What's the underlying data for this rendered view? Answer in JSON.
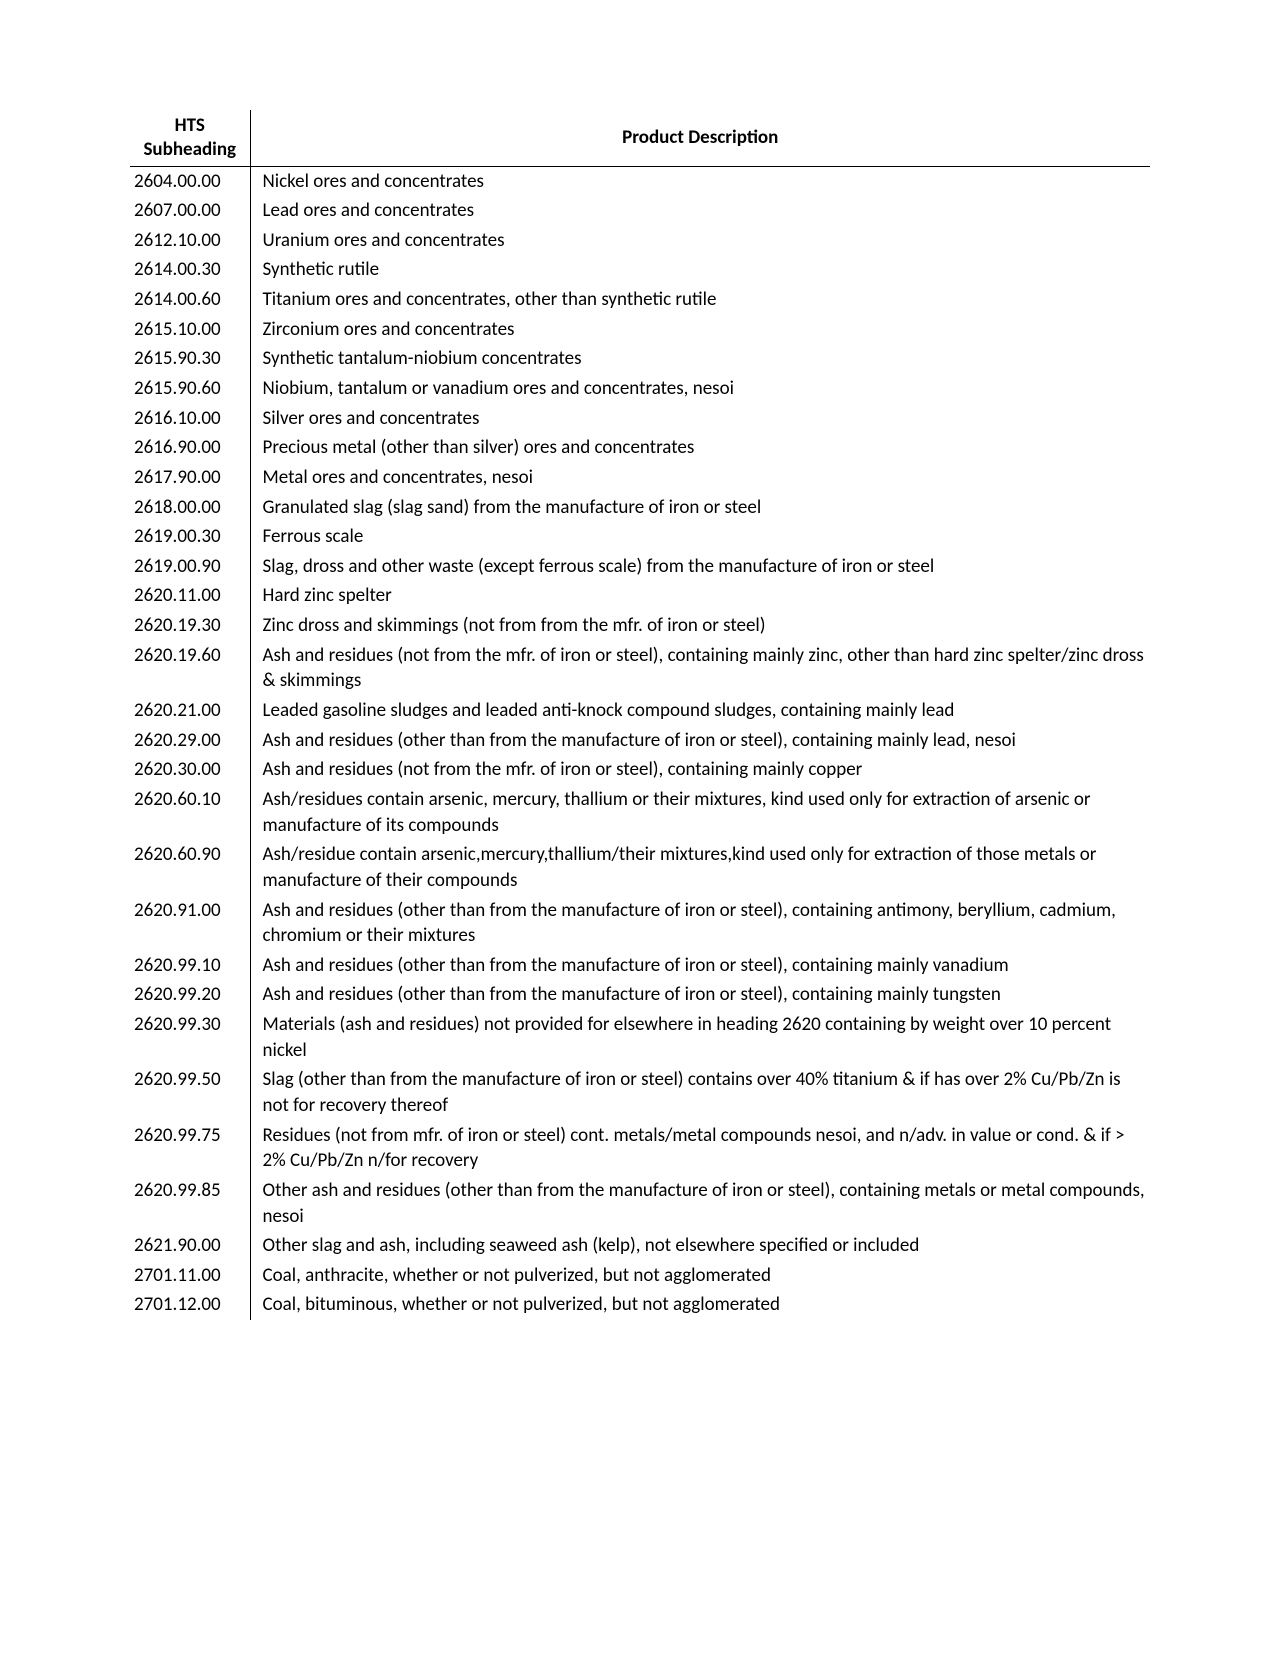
{
  "table": {
    "header": {
      "code_line1": "HTS",
      "code_line2": "Subheading",
      "desc": "Product Description"
    },
    "rows": [
      {
        "code": "2604.00.00",
        "desc": "Nickel ores and concentrates"
      },
      {
        "code": "2607.00.00",
        "desc": "Lead ores and concentrates"
      },
      {
        "code": "2612.10.00",
        "desc": "Uranium ores and concentrates"
      },
      {
        "code": "2614.00.30",
        "desc": "Synthetic rutile"
      },
      {
        "code": "2614.00.60",
        "desc": "Titanium ores and concentrates, other than synthetic rutile"
      },
      {
        "code": "2615.10.00",
        "desc": "Zirconium ores and concentrates"
      },
      {
        "code": "2615.90.30",
        "desc": "Synthetic tantalum-niobium concentrates"
      },
      {
        "code": "2615.90.60",
        "desc": "Niobium, tantalum or vanadium ores and concentrates, nesoi"
      },
      {
        "code": "2616.10.00",
        "desc": "Silver ores and concentrates"
      },
      {
        "code": "2616.90.00",
        "desc": "Precious metal (other than silver) ores and concentrates"
      },
      {
        "code": "2617.90.00",
        "desc": "Metal ores and concentrates, nesoi"
      },
      {
        "code": "2618.00.00",
        "desc": "Granulated slag (slag sand) from the manufacture of iron or steel"
      },
      {
        "code": "2619.00.30",
        "desc": "Ferrous scale"
      },
      {
        "code": "2619.00.90",
        "desc": "Slag, dross and other waste (except ferrous scale) from the manufacture of iron or steel"
      },
      {
        "code": "2620.11.00",
        "desc": "Hard zinc spelter"
      },
      {
        "code": "2620.19.30",
        "desc": "Zinc dross and skimmings (not from from the mfr. of iron or steel)"
      },
      {
        "code": "2620.19.60",
        "desc": "Ash and residues (not from the mfr. of iron or steel), containing mainly zinc, other than hard zinc spelter/zinc dross & skimmings"
      },
      {
        "code": "2620.21.00",
        "desc": "Leaded gasoline sludges and leaded anti-knock compound sludges, containing mainly lead"
      },
      {
        "code": "2620.29.00",
        "desc": "Ash and residues (other than from the manufacture of iron or steel), containing mainly lead, nesoi"
      },
      {
        "code": "2620.30.00",
        "desc": "Ash and residues (not from the mfr. of iron or steel), containing mainly copper"
      },
      {
        "code": "2620.60.10",
        "desc": "Ash/residues contain arsenic, mercury, thallium or their mixtures, kind used only for extraction of arsenic or manufacture of its compounds"
      },
      {
        "code": "2620.60.90",
        "desc": "Ash/residue contain arsenic,mercury,thallium/their mixtures,kind used only for extraction of those metals or manufacture of their compounds"
      },
      {
        "code": "2620.91.00",
        "desc": "Ash and residues (other than from the manufacture of iron or steel), containing antimony, beryllium, cadmium, chromium or their mixtures"
      },
      {
        "code": "2620.99.10",
        "desc": "Ash and residues (other than from the manufacture of iron or steel), containing mainly vanadium"
      },
      {
        "code": "2620.99.20",
        "desc": "Ash and residues (other than from the manufacture of iron or steel), containing mainly tungsten"
      },
      {
        "code": "2620.99.30",
        "desc": "Materials (ash and residues) not provided for elsewhere in heading 2620 containing by weight over 10 percent nickel"
      },
      {
        "code": "2620.99.50",
        "desc": "Slag (other than from the manufacture of iron or steel) contains over 40% titanium & if has over 2% Cu/Pb/Zn is not for recovery thereof"
      },
      {
        "code": "2620.99.75",
        "desc": "Residues (not from mfr. of iron or steel) cont. metals/metal compounds nesoi, and n/adv. in value or cond. & if > 2% Cu/Pb/Zn n/for recovery"
      },
      {
        "code": "2620.99.85",
        "desc": "Other ash and residues (other than from the manufacture of iron or steel), containing metals or metal compounds, nesoi"
      },
      {
        "code": "2621.90.00",
        "desc": "Other slag and ash, including seaweed ash (kelp), not elsewhere specified or included"
      },
      {
        "code": "2701.11.00",
        "desc": "Coal, anthracite, whether or not pulverized, but not agglomerated"
      },
      {
        "code": "2701.12.00",
        "desc": "Coal, bituminous, whether or not pulverized, but not agglomerated"
      }
    ]
  }
}
